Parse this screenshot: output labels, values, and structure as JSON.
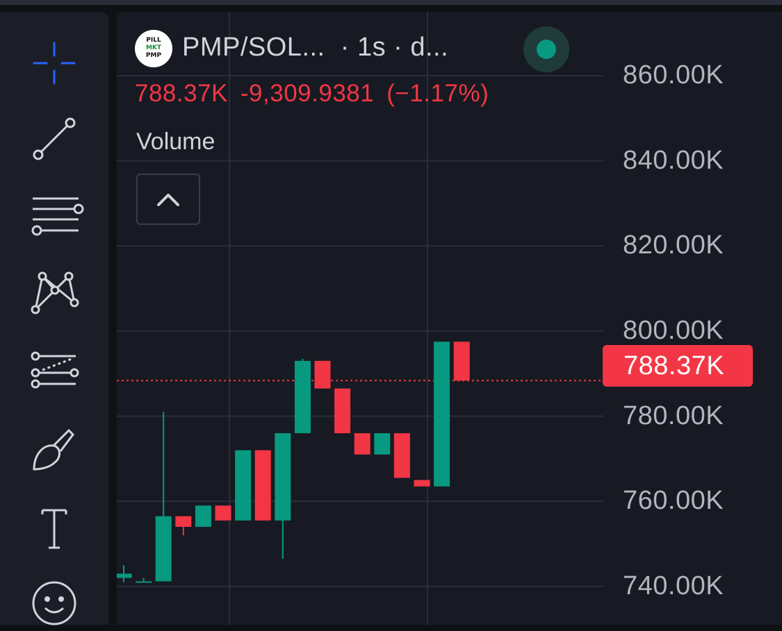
{
  "header": {
    "symbol": "PMP/SOL...",
    "interval_text": "· 1s · d..."
  },
  "price_line": {
    "last": "788.37K",
    "change": "-9,309.9381",
    "change_pct": "(−1.17%)"
  },
  "indicator": {
    "volume_label": "Volume"
  },
  "price_tag": "788.37K",
  "colors": {
    "up": "#089981",
    "down": "#f23645",
    "grid": "#2a2e39"
  },
  "toolbar": {
    "icons": [
      "crosshair-icon",
      "trend-line-icon",
      "horizontal-lines-icon",
      "pattern-icon",
      "fib-channel-icon",
      "brush-icon",
      "text-icon",
      "emoji-icon"
    ]
  },
  "chart_data": {
    "type": "candlestick",
    "y_axis": {
      "range": [
        731000,
        875000
      ],
      "ticks": [
        740000,
        760000,
        780000,
        800000,
        820000,
        840000,
        860000
      ],
      "tick_labels": [
        "740.00K",
        "760.00K",
        "780.00K",
        "800.00K",
        "820.00K",
        "840.00K",
        "860.00K"
      ]
    },
    "last_price": 788370,
    "candles": [
      {
        "o": 742000,
        "h": 745000,
        "l": 741000,
        "c": 743000
      },
      {
        "o": 741000,
        "h": 742000,
        "l": 741000,
        "c": 741200
      },
      {
        "o": 741200,
        "h": 781000,
        "l": 741200,
        "c": 756500
      },
      {
        "o": 756500,
        "h": 756500,
        "l": 752000,
        "c": 754000
      },
      {
        "o": 754000,
        "h": 759000,
        "l": 754000,
        "c": 759000
      },
      {
        "o": 759000,
        "h": 759000,
        "l": 755500,
        "c": 755500
      },
      {
        "o": 755500,
        "h": 772000,
        "l": 755500,
        "c": 772000
      },
      {
        "o": 772000,
        "h": 772000,
        "l": 755500,
        "c": 755500
      },
      {
        "o": 755500,
        "h": 776000,
        "l": 746500,
        "c": 776000
      },
      {
        "o": 776000,
        "h": 793500,
        "l": 776000,
        "c": 793000
      },
      {
        "o": 793000,
        "h": 793000,
        "l": 786500,
        "c": 786500
      },
      {
        "o": 786500,
        "h": 786500,
        "l": 776000,
        "c": 776000
      },
      {
        "o": 776000,
        "h": 776000,
        "l": 771000,
        "c": 771000
      },
      {
        "o": 771000,
        "h": 776000,
        "l": 771000,
        "c": 776000
      },
      {
        "o": 776000,
        "h": 776000,
        "l": 765500,
        "c": 765500
      },
      {
        "o": 765000,
        "h": 765000,
        "l": 763500,
        "c": 763500
      },
      {
        "o": 763500,
        "h": 797500,
        "l": 763500,
        "c": 797500
      },
      {
        "o": 797500,
        "h": 797500,
        "l": 788370,
        "c": 788370
      }
    ]
  }
}
